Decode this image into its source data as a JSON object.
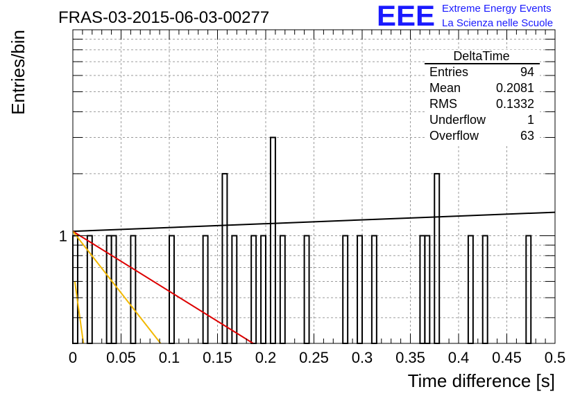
{
  "histogram_title": "FRAS-03-2015-06-03-00277",
  "logo": {
    "text": "EEE",
    "line1": "Extreme Energy Events",
    "line2": "La Scienza nelle Scuole",
    "color": "#1a1aff"
  },
  "stats": {
    "name": "DeltaTime",
    "rows": [
      {
        "label": "Entries",
        "value": "94"
      },
      {
        "label": "Mean",
        "value": "0.2081"
      },
      {
        "label": "RMS",
        "value": "0.1332"
      },
      {
        "label": "Underflow",
        "value": "1"
      },
      {
        "label": "Overflow",
        "value": "63"
      }
    ]
  },
  "chart_data": {
    "type": "bar",
    "title": "FRAS-03-2015-06-03-00277",
    "xlabel": "Time difference [s]",
    "ylabel": "Entries/bin",
    "x_log": false,
    "y_log": true,
    "xlim": [
      0,
      0.5
    ],
    "ylim": [
      0.3,
      10
    ],
    "grid": true,
    "x_ticks": [
      "0",
      "0.05",
      "0.1",
      "0.15",
      "0.2",
      "0.25",
      "0.3",
      "0.35",
      "0.4",
      "0.45",
      "0.5"
    ],
    "y_ticks": [
      "1"
    ],
    "bin_width": 0.005,
    "bins": [
      {
        "x0": 0.0,
        "value": 1
      },
      {
        "x0": 0.015,
        "value": 1
      },
      {
        "x0": 0.035,
        "value": 1
      },
      {
        "x0": 0.04,
        "value": 1
      },
      {
        "x0": 0.06,
        "value": 1
      },
      {
        "x0": 0.1,
        "value": 1
      },
      {
        "x0": 0.135,
        "value": 1
      },
      {
        "x0": 0.155,
        "value": 2
      },
      {
        "x0": 0.165,
        "value": 1
      },
      {
        "x0": 0.185,
        "value": 1
      },
      {
        "x0": 0.195,
        "value": 1
      },
      {
        "x0": 0.205,
        "value": 3
      },
      {
        "x0": 0.215,
        "value": 1
      },
      {
        "x0": 0.24,
        "value": 1
      },
      {
        "x0": 0.28,
        "value": 1
      },
      {
        "x0": 0.295,
        "value": 1
      },
      {
        "x0": 0.31,
        "value": 1
      },
      {
        "x0": 0.36,
        "value": 1
      },
      {
        "x0": 0.365,
        "value": 1
      },
      {
        "x0": 0.375,
        "value": 2
      },
      {
        "x0": 0.41,
        "value": 1
      },
      {
        "x0": 0.425,
        "value": 1
      },
      {
        "x0": 0.47,
        "value": 1
      }
    ],
    "fit_curves": [
      {
        "color": "#000000",
        "points": [
          [
            0.0,
            1.05
          ],
          [
            0.5,
            1.3
          ]
        ]
      },
      {
        "color": "#dd0000",
        "points": [
          [
            0.0,
            1.05
          ],
          [
            0.187,
            0.3
          ]
        ]
      },
      {
        "color": "#f2b800",
        "points": [
          [
            0.0,
            1.05
          ],
          [
            0.091,
            0.3
          ]
        ]
      },
      {
        "color": "#f2b800",
        "points": [
          [
            0.002,
            0.6
          ],
          [
            0.011,
            0.3
          ]
        ]
      }
    ]
  }
}
